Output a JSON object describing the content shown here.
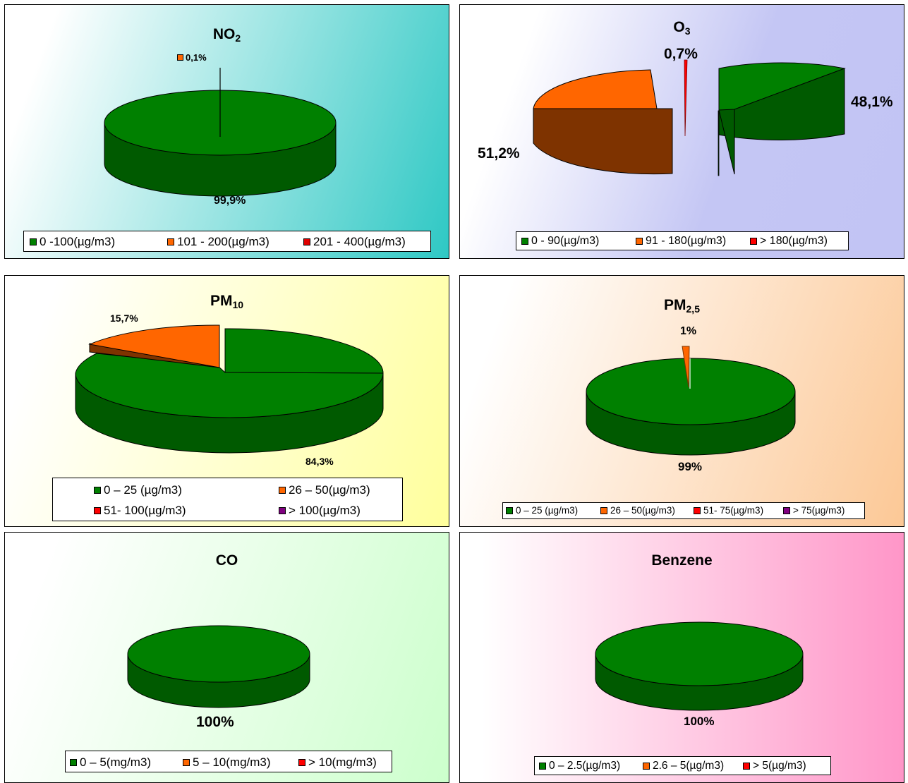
{
  "chart_data": [
    {
      "type": "pie",
      "title": "NO",
      "title_sub": "2",
      "categories": [
        "0 -100(µg/m3)",
        "101  -  200(µg/m3)",
        "201  -  400(µg/m3)"
      ],
      "values": [
        99.9,
        0.1,
        0
      ],
      "data_labels": [
        "99,9%",
        "0,1%",
        ""
      ],
      "colors": [
        "#008000",
        "#ff6600",
        "#e00000"
      ],
      "legend_position": "bottom",
      "style": "3d"
    },
    {
      "type": "pie",
      "title": "O",
      "title_sub": "3",
      "categories": [
        "0  -  90(µg/m3)",
        "91  -  180(µg/m3)",
        "> 180(µg/m3)"
      ],
      "values": [
        48.1,
        51.2,
        0.7
      ],
      "data_labels": [
        "48,1%",
        "51,2%",
        "0,7%"
      ],
      "colors": [
        "#008000",
        "#ff6600",
        "#ff0000"
      ],
      "legend_position": "bottom",
      "style": "3d-exploded"
    },
    {
      "type": "pie",
      "title": "PM",
      "title_sub": "10",
      "categories": [
        "0 – 25 (µg/m3)",
        "26 – 50(µg/m3)",
        "51- 100(µg/m3)",
        "> 100(µg/m3)"
      ],
      "values": [
        84.3,
        15.7,
        0,
        0
      ],
      "data_labels": [
        "84,3%",
        "15,7%",
        "",
        ""
      ],
      "colors": [
        "#008000",
        "#ff6600",
        "#ff0000",
        "#800080"
      ],
      "legend_position": "bottom",
      "style": "3d"
    },
    {
      "type": "pie",
      "title": "PM",
      "title_sub": "2,5",
      "categories": [
        "0 – 25 (µg/m3)",
        "26 – 50(µg/m3)",
        "51- 75(µg/m3)",
        "> 75(µg/m3)"
      ],
      "values": [
        99,
        1,
        0,
        0
      ],
      "data_labels": [
        "99%",
        "1%",
        "",
        ""
      ],
      "colors": [
        "#008000",
        "#ff6600",
        "#ff0000",
        "#800080"
      ],
      "legend_position": "bottom",
      "style": "3d"
    },
    {
      "type": "pie",
      "title": "CO",
      "title_sub": "",
      "categories": [
        "0 – 5(mg/m3)",
        "5 – 10(mg/m3)",
        "> 10(mg/m3)"
      ],
      "values": [
        100,
        0,
        0
      ],
      "data_labels": [
        "100%",
        "",
        ""
      ],
      "colors": [
        "#008000",
        "#ff6600",
        "#ff0000"
      ],
      "legend_position": "bottom",
      "style": "3d"
    },
    {
      "type": "pie",
      "title": "Benzene",
      "title_sub": "",
      "categories": [
        "0 – 2.5(µg/m3)",
        "2.6 – 5(µg/m3)",
        "> 5(µg/m3)"
      ],
      "values": [
        100,
        0,
        0
      ],
      "data_labels": [
        "100%",
        "",
        ""
      ],
      "colors": [
        "#008000",
        "#ff6600",
        "#ff0000"
      ],
      "legend_position": "bottom",
      "style": "3d"
    }
  ]
}
